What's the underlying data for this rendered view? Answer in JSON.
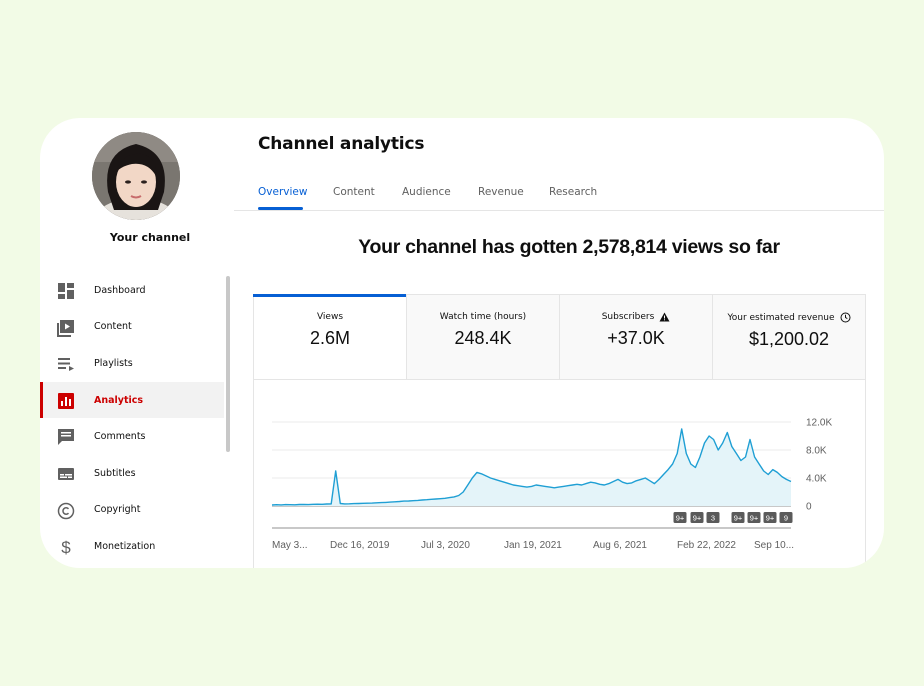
{
  "sidebar": {
    "channel_label": "Your channel",
    "items": [
      {
        "label": "Dashboard",
        "icon": "dashboard-icon"
      },
      {
        "label": "Content",
        "icon": "video-library-icon"
      },
      {
        "label": "Playlists",
        "icon": "playlist-icon"
      },
      {
        "label": "Analytics",
        "icon": "analytics-icon",
        "active": true
      },
      {
        "label": "Comments",
        "icon": "comment-icon"
      },
      {
        "label": "Subtitles",
        "icon": "subtitles-icon"
      },
      {
        "label": "Copyright",
        "icon": "copyright-icon"
      },
      {
        "label": "Monetization",
        "icon": "dollar-icon"
      }
    ]
  },
  "header": {
    "title": "Channel analytics",
    "tabs": [
      {
        "label": "Overview",
        "active": true
      },
      {
        "label": "Content"
      },
      {
        "label": "Audience"
      },
      {
        "label": "Revenue"
      },
      {
        "label": "Research"
      }
    ]
  },
  "headline": "Your channel has gotten 2,578,814 views so far",
  "metrics": [
    {
      "label": "Views",
      "value": "2.6M",
      "active": true
    },
    {
      "label": "Watch time (hours)",
      "value": "248.4K"
    },
    {
      "label": "Subscribers",
      "value": "+37.0K",
      "icon": "warning-icon"
    },
    {
      "label": "Your estimated revenue",
      "value": "$1,200.02",
      "icon": "clock-icon"
    }
  ],
  "colors": {
    "accent": "#065fd4",
    "active_nav": "#cc0000",
    "line": "#1f9fd4",
    "fill": "#e4f4f9",
    "page_bg": "#f2fbe6"
  },
  "chart_data": {
    "type": "area",
    "x_tick_labels": [
      "May 3...",
      "Dec 16, 2019",
      "Jul 3, 2020",
      "Jan 19, 2021",
      "Aug 6, 2021",
      "Feb 22, 2022",
      "Sep 10..."
    ],
    "y_tick_labels": [
      "12.0K",
      "8.0K",
      "4.0K",
      "0"
    ],
    "ylim": [
      0,
      12000
    ],
    "y_axis_side": "right",
    "grid": true,
    "series": [
      {
        "values": [
          150,
          180,
          160,
          200,
          190,
          170,
          210,
          230,
          200,
          240,
          260,
          250,
          280,
          300,
          5000,
          350,
          300,
          320,
          340,
          360,
          380,
          400,
          420,
          450,
          480,
          520,
          560,
          600,
          650,
          700,
          720,
          760,
          800,
          850,
          900,
          950,
          1000,
          1050,
          1100,
          1200,
          1300,
          1500,
          2000,
          3000,
          4000,
          4800,
          4600,
          4300,
          4000,
          3800,
          3600,
          3400,
          3200,
          3000,
          2900,
          2800,
          2700,
          2800,
          3000,
          2900,
          2800,
          2700,
          2600,
          2700,
          2800,
          2900,
          3000,
          3100,
          3000,
          3200,
          3400,
          3300,
          3100,
          3000,
          3200,
          3500,
          3800,
          3400,
          3200,
          3300,
          3600,
          3800,
          4000,
          3600,
          3200,
          3800,
          4500,
          5200,
          6000,
          7500,
          11000,
          7500,
          6000,
          5500,
          7000,
          9000,
          10000,
          9500,
          8000,
          9000,
          10500,
          8500,
          7500,
          6500,
          7000,
          9500,
          7000,
          6000,
          5000,
          4500,
          5200,
          4800,
          4200,
          3800,
          3500
        ]
      }
    ],
    "annotations": [
      "9+",
      "9+",
      "3",
      "9+",
      "9+",
      "9+",
      "9"
    ]
  }
}
